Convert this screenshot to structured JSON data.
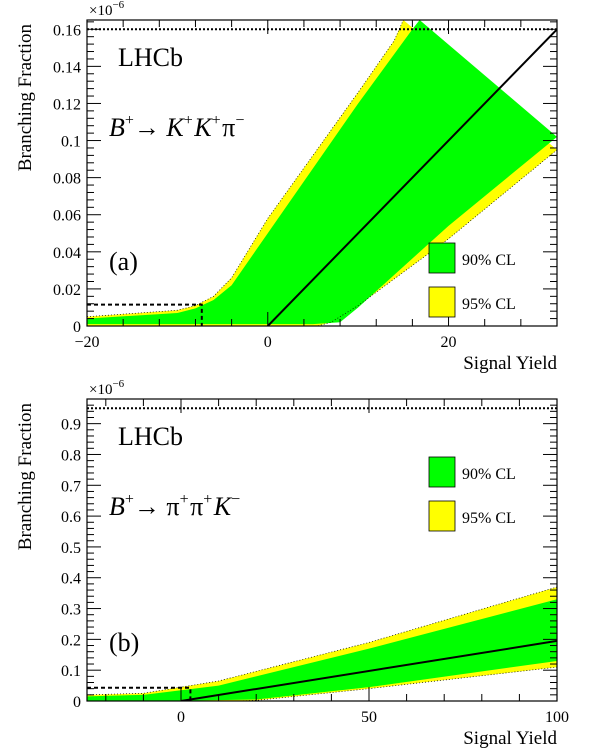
{
  "chart_data": [
    {
      "type": "area",
      "panel_label": "(a)",
      "experiment_label": "LHCb",
      "decay": {
        "parent": "B",
        "parent_charge": "+",
        "arrow": "→",
        "products": [
          {
            "symbol": "K",
            "italic": true,
            "charge": "+"
          },
          {
            "symbol": "K",
            "italic": true,
            "charge": "+"
          },
          {
            "symbol": "π",
            "italic": false,
            "charge": "−"
          }
        ]
      },
      "xlabel": "Signal Yield",
      "ylabel": "Branching Fraction",
      "y_multiplier": "×10",
      "y_multiplier_exp": "−6",
      "xlim": [
        -20,
        32
      ],
      "ylim": [
        0,
        0.165
      ],
      "xticks": [
        -20,
        0,
        20
      ],
      "xtick_labels": [
        "−20",
        "0",
        "20"
      ],
      "yticks": [
        0,
        0.02,
        0.04,
        0.06,
        0.08,
        0.1,
        0.12,
        0.14,
        0.16
      ],
      "ytick_labels": [
        "0",
        "0.02",
        "0.04",
        "0.06",
        "0.08",
        "0.1",
        "0.12",
        "0.14",
        "0.16"
      ],
      "legend": {
        "placement": "bottom-right",
        "entries": [
          {
            "label": "90% CL",
            "color": "#00ff00"
          },
          {
            "label": "95% CL",
            "color": "#ffff00"
          }
        ]
      },
      "bands": {
        "outer_95_upper": [
          [
            -20,
            0.005
          ],
          [
            -10,
            0.0085
          ],
          [
            -8,
            0.011
          ],
          [
            -6,
            0.016
          ],
          [
            -4,
            0.026
          ],
          [
            -2,
            0.042
          ],
          [
            0,
            0.058
          ],
          [
            5,
            0.092
          ],
          [
            10,
            0.126
          ],
          [
            14,
            0.154
          ],
          [
            15,
            0.165
          ]
        ],
        "inner_90_upper": [
          [
            -20,
            0.004
          ],
          [
            -10,
            0.007
          ],
          [
            -8,
            0.0095
          ],
          [
            -6,
            0.014
          ],
          [
            -4,
            0.022
          ],
          [
            -2,
            0.036
          ],
          [
            0,
            0.05
          ],
          [
            5,
            0.085
          ],
          [
            10,
            0.12
          ],
          [
            16,
            0.16
          ],
          [
            16.8,
            0.165
          ]
        ],
        "inner_90_lower": [
          [
            -20,
            0.001
          ],
          [
            0,
            0.001
          ],
          [
            5,
            0.001
          ],
          [
            8,
            0.002
          ],
          [
            10,
            0.01
          ],
          [
            20,
            0.054
          ],
          [
            32,
            0.102
          ]
        ],
        "outer_95_lower": [
          [
            -20,
            0
          ],
          [
            5.5,
            0
          ],
          [
            7,
            0.002
          ],
          [
            10,
            0.011
          ],
          [
            20,
            0.047
          ],
          [
            32,
            0.095
          ]
        ]
      },
      "central_line": [
        [
          0,
          0
        ],
        [
          32,
          0.16
        ]
      ],
      "upper_limit_line": {
        "y": 0.16,
        "style": "dotted"
      },
      "limit_marker": {
        "x": -7.3,
        "y": 0.0115,
        "style": "dashed"
      }
    },
    {
      "type": "area",
      "panel_label": "(b)",
      "experiment_label": "LHCb",
      "decay": {
        "parent": "B",
        "parent_charge": "+",
        "arrow": "→",
        "products": [
          {
            "symbol": "π",
            "italic": false,
            "charge": "+"
          },
          {
            "symbol": "π",
            "italic": false,
            "charge": "+"
          },
          {
            "symbol": "K",
            "italic": true,
            "charge": "−"
          }
        ]
      },
      "xlabel": "Signal Yield",
      "ylabel": "Branching Fraction",
      "y_multiplier": "×10",
      "y_multiplier_exp": "−6",
      "xlim": [
        -25,
        100
      ],
      "ylim": [
        0,
        0.98
      ],
      "xticks": [
        0,
        50,
        100
      ],
      "xtick_labels": [
        "0",
        "50",
        "100"
      ],
      "yticks": [
        0,
        0.1,
        0.2,
        0.3,
        0.4,
        0.5,
        0.6,
        0.7,
        0.8,
        0.9
      ],
      "ytick_labels": [
        "0",
        "0.1",
        "0.2",
        "0.3",
        "0.4",
        "0.5",
        "0.6",
        "0.7",
        "0.8",
        "0.9"
      ],
      "legend": {
        "placement": "top-right",
        "entries": [
          {
            "label": "90% CL",
            "color": "#00ff00"
          },
          {
            "label": "95% CL",
            "color": "#ffff00"
          }
        ]
      },
      "bands": {
        "outer_95_upper": [
          [
            -25,
            0.02
          ],
          [
            -10,
            0.025
          ],
          [
            0,
            0.045
          ],
          [
            10,
            0.065
          ],
          [
            50,
            0.19
          ],
          [
            100,
            0.37
          ]
        ],
        "inner_90_upper": [
          [
            -25,
            0.015
          ],
          [
            -10,
            0.02
          ],
          [
            0,
            0.035
          ],
          [
            10,
            0.05
          ],
          [
            50,
            0.17
          ],
          [
            100,
            0.33
          ]
        ],
        "inner_90_lower": [
          [
            -25,
            0.001
          ],
          [
            0,
            0.001
          ],
          [
            20,
            0.005
          ],
          [
            50,
            0.045
          ],
          [
            100,
            0.13
          ]
        ],
        "outer_95_lower": [
          [
            -25,
            0
          ],
          [
            15,
            0
          ],
          [
            20,
            0.002
          ],
          [
            50,
            0.04
          ],
          [
            100,
            0.11
          ]
        ]
      },
      "central_line": [
        [
          0,
          0
        ],
        [
          100,
          0.195
        ]
      ],
      "upper_limit_line": {
        "y": 0.95,
        "style": "dotted"
      },
      "limit_marker": {
        "x": 2.5,
        "y": 0.043,
        "style": "dashed"
      }
    }
  ]
}
